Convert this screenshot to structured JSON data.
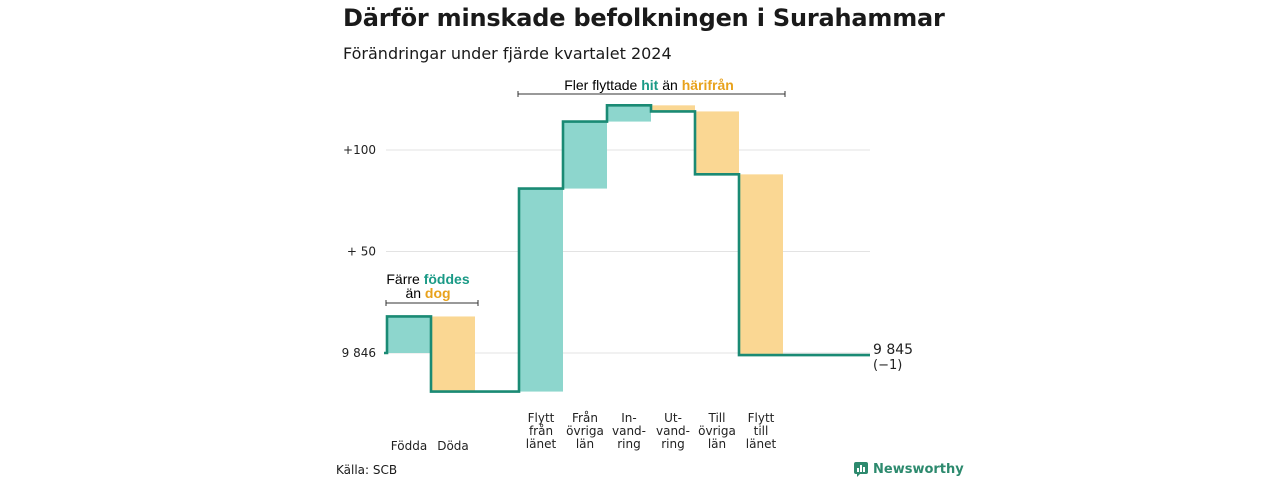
{
  "title": "Därför minskade befolkningen i Surahammar",
  "subtitle": "Förändringar under fjärde kvartalet 2024",
  "source": "Källa: SCB",
  "brand": "Newsworthy",
  "colors": {
    "positive": "#8dd6cd",
    "negative": "#fad793",
    "line": "#1a8a74",
    "positive_text": "#1a9a86",
    "negative_text": "#e8a21c",
    "grid": "#e3e3e3"
  },
  "annotations": {
    "births": {
      "line1": "Färre",
      "hl1": "föddes",
      "line2": "än",
      "hl2": "dog"
    },
    "migration": {
      "text1": "Fler flyttade",
      "hl1": "hit",
      "text2": "än",
      "hl2": "härifrån"
    }
  },
  "chart_data": {
    "type": "waterfall",
    "start_label": "9 846",
    "end_label": "9 845",
    "end_change": "(−1)",
    "yticks": [
      {
        "value": 0,
        "label": "9 846"
      },
      {
        "value": 50,
        "label": "+ 50"
      },
      {
        "value": 100,
        "label": "+100"
      }
    ],
    "ylim": [
      -20,
      125
    ],
    "steps": [
      {
        "label": [
          "Födda"
        ],
        "change": 18
      },
      {
        "label": [
          "Döda"
        ],
        "change": -37
      },
      {
        "label": [
          "Flytt",
          "från",
          "länet"
        ],
        "change": 100
      },
      {
        "label": [
          "Från",
          "övriga",
          "län"
        ],
        "change": 33
      },
      {
        "label": [
          "In-",
          "vand-",
          "ring"
        ],
        "change": 8
      },
      {
        "label": [
          "Ut-",
          "vand-",
          "ring"
        ],
        "change": -3
      },
      {
        "label": [
          "Till",
          "övriga",
          "län"
        ],
        "change": -31
      },
      {
        "label": [
          "Flytt",
          "till",
          "länet"
        ],
        "change": -89
      }
    ]
  }
}
